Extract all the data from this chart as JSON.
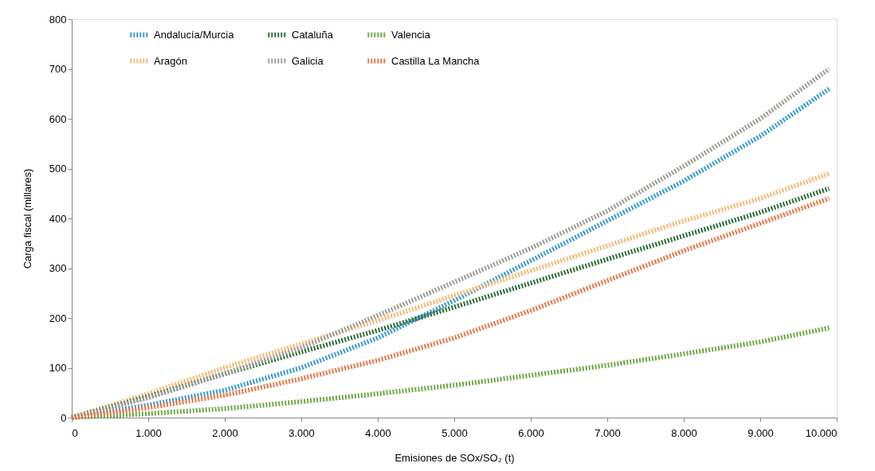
{
  "chart_data": {
    "type": "line",
    "xlabel": "Emisiones de SOx/SO₂ (t)",
    "ylabel": "Carga fiscal (millares)",
    "x": [
      0,
      1000,
      2000,
      3000,
      4000,
      5000,
      6000,
      7000,
      8000,
      9000,
      9900
    ],
    "xlim": [
      0,
      10000
    ],
    "xticks": [
      0,
      {
        "value": 1000,
        "label": "1.000"
      },
      {
        "value": 2000,
        "label": "2.000"
      },
      {
        "value": 3000,
        "label": "3.000"
      },
      {
        "value": 4000,
        "label": "4.000"
      },
      {
        "value": 5000,
        "label": "5.000"
      },
      {
        "value": 6000,
        "label": "6.000"
      },
      {
        "value": 7000,
        "label": "7.000"
      },
      {
        "value": 8000,
        "label": "8.000"
      },
      {
        "value": 9000,
        "label": "9.000"
      },
      {
        "value": 10000,
        "label": "10.000"
      }
    ],
    "ylim": [
      0,
      800
    ],
    "yticks": [
      0,
      100,
      200,
      300,
      400,
      500,
      600,
      700,
      800
    ],
    "grid": false,
    "legend": "top",
    "line_style": "dotted",
    "marker": "none",
    "series": [
      {
        "name": "Andalucía/Murcia",
        "color": "#3b9ad0",
        "values": [
          0,
          25,
          55,
          100,
          160,
          235,
          315,
          395,
          475,
          565,
          660
        ]
      },
      {
        "name": "Aragón",
        "color": "#f5b97a",
        "values": [
          0,
          48,
          100,
          148,
          195,
          245,
          295,
          345,
          395,
          440,
          490
        ]
      },
      {
        "name": "Cataluña",
        "color": "#2f6e3a",
        "values": [
          0,
          42,
          88,
          132,
          175,
          222,
          270,
          318,
          365,
          412,
          460
        ]
      },
      {
        "name": "Galicia",
        "color": "#a09d95",
        "values": [
          0,
          40,
          88,
          140,
          205,
          272,
          340,
          415,
          505,
          600,
          700
        ]
      },
      {
        "name": "Valencia",
        "color": "#6fa84a",
        "values": [
          0,
          8,
          18,
          32,
          48,
          65,
          85,
          105,
          128,
          152,
          180
        ]
      },
      {
        "name": "Castilla La Mancha",
        "color": "#e8784a",
        "values": [
          0,
          20,
          45,
          78,
          115,
          160,
          215,
          275,
          335,
          390,
          440
        ]
      }
    ]
  }
}
